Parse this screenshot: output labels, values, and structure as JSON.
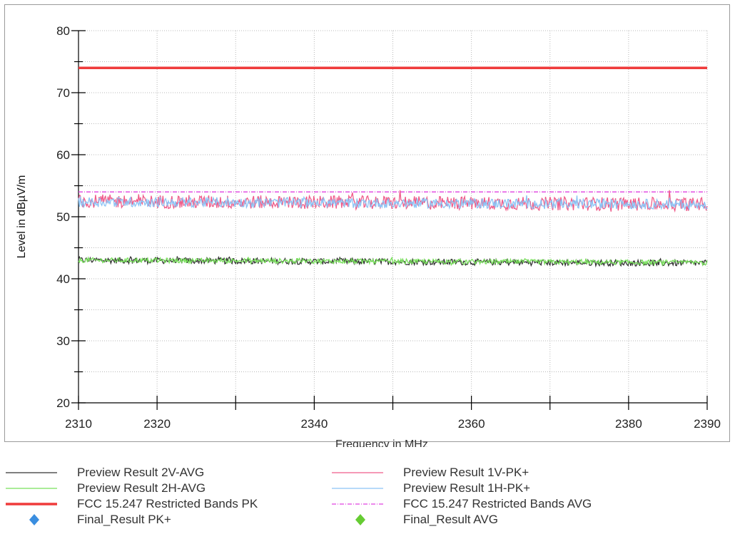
{
  "chart_data": {
    "type": "line",
    "title": "",
    "xlabel": "Frequency in MHz",
    "ylabel": "Level in dBµV/m",
    "xlim": [
      2310,
      2390
    ],
    "ylim": [
      20,
      80
    ],
    "x_ticks": [
      2310,
      2320,
      2340,
      2360,
      2380,
      2390
    ],
    "y_ticks": [
      20,
      30,
      40,
      50,
      60,
      70,
      80
    ],
    "grid": true,
    "legend_position": "bottom",
    "series": [
      {
        "name": "Preview Result 2V-AVG",
        "color": "#333333",
        "style": "solid",
        "level_mean": 43.0,
        "level_end": 42.5,
        "noise": 0.5
      },
      {
        "name": "Preview Result 1V-PK+",
        "color": "#ef5c8a",
        "style": "solid",
        "level_mean": 52.5,
        "level_end": 52.0,
        "noise": 1.1
      },
      {
        "name": "Preview Result 2H-AVG",
        "color": "#77e05a",
        "style": "solid",
        "level_mean": 43.0,
        "level_end": 42.6,
        "noise": 0.4
      },
      {
        "name": "Preview Result 1H-PK+",
        "color": "#8cc4f5",
        "style": "solid",
        "level_mean": 52.4,
        "level_end": 52.0,
        "noise": 0.8
      },
      {
        "name": "FCC 15.247 Restricted Bands PK",
        "color": "#ef3b3b",
        "style": "thick",
        "x": [
          2310,
          2390
        ],
        "y": [
          74,
          74
        ]
      },
      {
        "name": "FCC 15.247 Restricted Bands AVG",
        "color": "#e040e0",
        "style": "dashdot",
        "x": [
          2310,
          2390
        ],
        "y": [
          54,
          54
        ]
      },
      {
        "name": "Final_Result PK+",
        "color": "#3a8ee0",
        "style": "marker",
        "x": [],
        "y": []
      },
      {
        "name": "Final_Result AVG",
        "color": "#66cc33",
        "style": "marker",
        "x": [],
        "y": []
      }
    ]
  }
}
